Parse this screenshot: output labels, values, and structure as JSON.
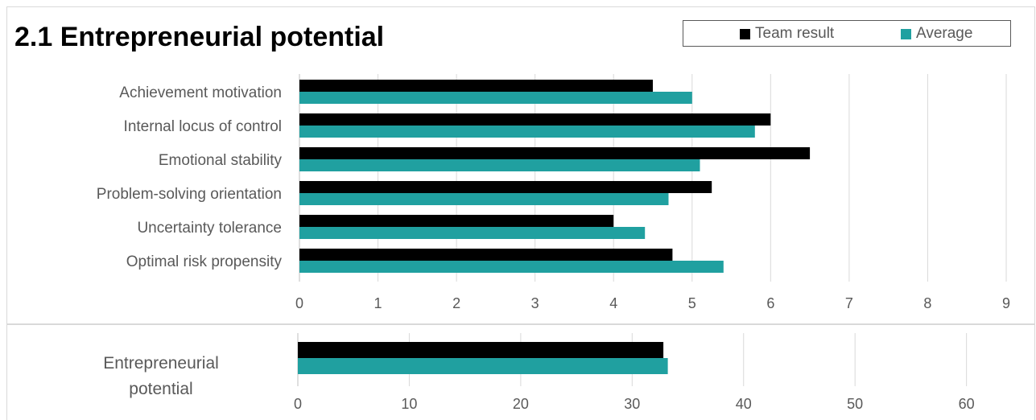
{
  "title": "2.1 Entrepreneurial potential",
  "legend": {
    "team_label": "Team result",
    "average_label": "Average"
  },
  "colors": {
    "team": "#000000",
    "average": "#20a0a0",
    "grid": "#d9d9d9",
    "text": "#595959"
  },
  "chart_data": [
    {
      "type": "bar",
      "orientation": "horizontal",
      "categories": [
        "Achievement motivation",
        "Internal locus of control",
        "Emotional stability",
        "Problem-solving orientation",
        "Uncertainty tolerance",
        "Optimal risk propensity"
      ],
      "series": [
        {
          "name": "Team result",
          "values": [
            4.5,
            6.0,
            6.5,
            5.25,
            4.0,
            4.75
          ]
        },
        {
          "name": "Average",
          "values": [
            5.0,
            5.8,
            5.1,
            4.7,
            4.4,
            5.4
          ]
        }
      ],
      "xlim": [
        0,
        9
      ],
      "xticks": [
        "0",
        "1",
        "2",
        "3",
        "4",
        "5",
        "6",
        "7",
        "8",
        "9"
      ],
      "grid": true,
      "legend": "top-right"
    },
    {
      "type": "bar",
      "orientation": "horizontal",
      "categories": [
        "Entrepreneurial potential"
      ],
      "category_lines": [
        "Entrepreneurial",
        "potential"
      ],
      "series": [
        {
          "name": "Team result",
          "values": [
            32.8
          ]
        },
        {
          "name": "Average",
          "values": [
            33.2
          ]
        }
      ],
      "xlim": [
        0,
        64
      ],
      "xticks": [
        "0",
        "10",
        "20",
        "30",
        "40",
        "50",
        "60"
      ],
      "grid": true
    }
  ]
}
